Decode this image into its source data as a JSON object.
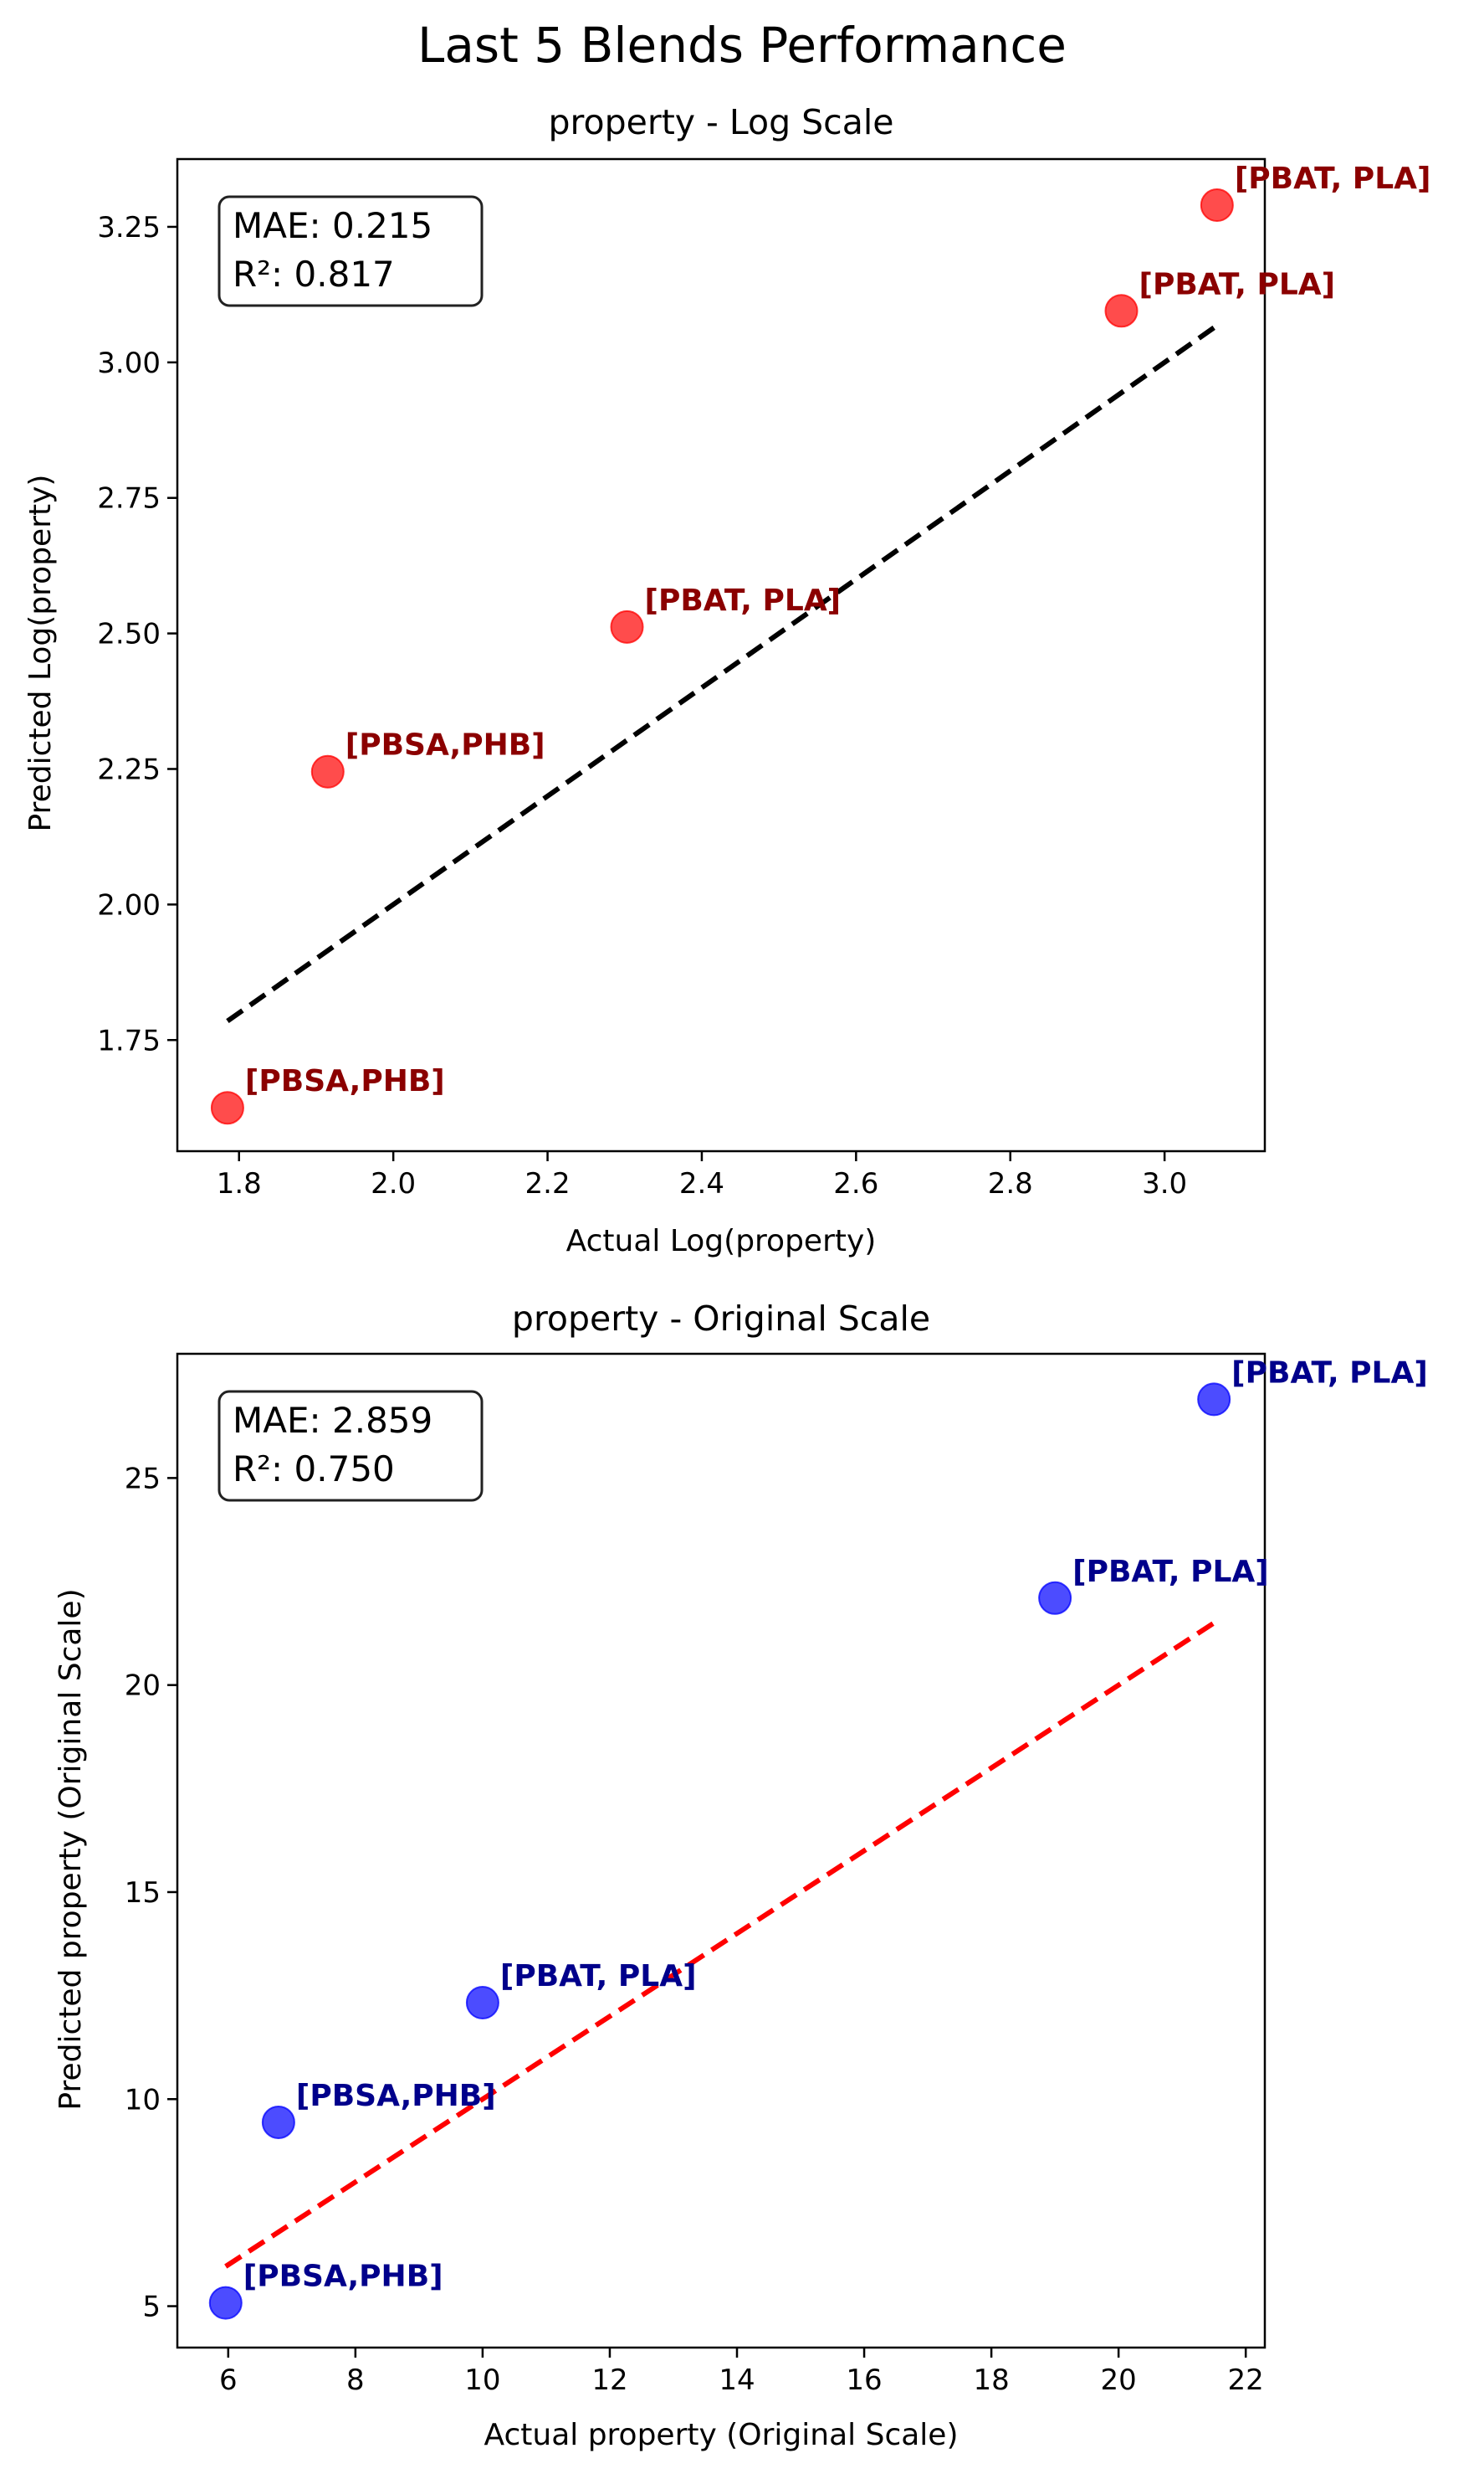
{
  "suptitle": "Last 5 Blends Performance",
  "chart_data": [
    {
      "type": "scatter",
      "title": "property - Log Scale",
      "xlabel": "Actual Log(property)",
      "ylabel": "Predicted Log(property)",
      "xlim": [
        1.72,
        3.13
      ],
      "ylim": [
        1.545,
        3.375
      ],
      "xticks": [
        1.8,
        2.0,
        2.2,
        2.4,
        2.6,
        2.8,
        3.0
      ],
      "yticks": [
        1.75,
        2.0,
        2.25,
        2.5,
        2.75,
        3.0,
        3.25
      ],
      "tick_decimals": {
        "x": 1,
        "y": 2
      },
      "point_color": "#ff0000",
      "label_color": "#8b0000",
      "line_color": "#000000",
      "points": [
        {
          "x": 1.785,
          "y": 1.625,
          "label": "[PBSA,PHB]"
        },
        {
          "x": 1.915,
          "y": 2.245,
          "label": "[PBSA,PHB]"
        },
        {
          "x": 2.303,
          "y": 2.512,
          "label": "[PBAT, PLA]"
        },
        {
          "x": 2.944,
          "y": 3.095,
          "label": "[PBAT, PLA]"
        },
        {
          "x": 3.068,
          "y": 3.29,
          "label": "[PBAT, PLA]"
        }
      ],
      "reference_line": {
        "x": [
          1.785,
          3.068
        ],
        "y": [
          1.785,
          3.068
        ]
      },
      "metrics": {
        "mae": "MAE: 0.215",
        "r2": "R²: 0.817"
      },
      "grid": false
    },
    {
      "type": "scatter",
      "title": "property - Original Scale",
      "xlabel": "Actual property (Original Scale)",
      "ylabel": "Predicted property (Original Scale)",
      "xlim": [
        5.2,
        22.3
      ],
      "ylim": [
        4.0,
        28.0
      ],
      "xticks": [
        6,
        8,
        10,
        12,
        14,
        16,
        18,
        20,
        22
      ],
      "yticks": [
        5,
        10,
        15,
        20,
        25
      ],
      "tick_decimals": {
        "x": 0,
        "y": 0
      },
      "point_color": "#0000ff",
      "label_color": "#00008b",
      "line_color": "#ff0000",
      "points": [
        {
          "x": 5.96,
          "y": 5.08,
          "label": "[PBSA,PHB]"
        },
        {
          "x": 6.79,
          "y": 9.44,
          "label": "[PBSA,PHB]"
        },
        {
          "x": 10.0,
          "y": 12.33,
          "label": "[PBAT, PLA]"
        },
        {
          "x": 19.0,
          "y": 22.1,
          "label": "[PBAT, PLA]"
        },
        {
          "x": 21.5,
          "y": 26.9,
          "label": "[PBAT, PLA]"
        }
      ],
      "reference_line": {
        "x": [
          5.96,
          21.5
        ],
        "y": [
          5.96,
          21.5
        ]
      },
      "metrics": {
        "mae": "MAE: 2.859",
        "r2": "R²: 0.750"
      },
      "grid": false
    }
  ]
}
